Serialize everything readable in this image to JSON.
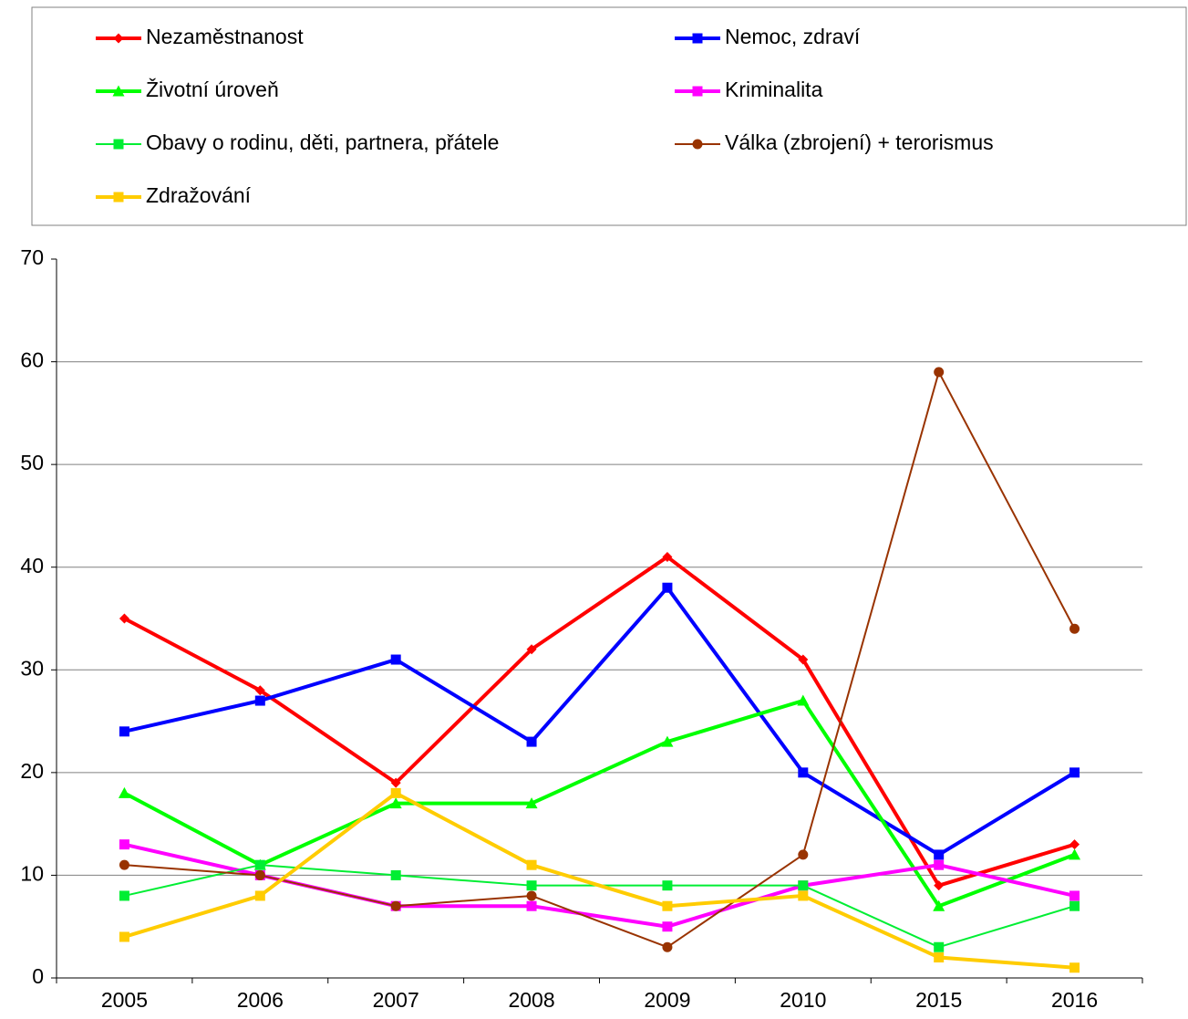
{
  "chart_data": {
    "type": "line",
    "categories": [
      "2005",
      "2006",
      "2007",
      "2008",
      "2009",
      "2010",
      "2015",
      "2016"
    ],
    "ylim": [
      0,
      70
    ],
    "yticks": [
      0,
      10,
      20,
      30,
      40,
      50,
      60,
      70
    ],
    "grid": true,
    "legend": "top",
    "series": [
      {
        "name": "Nezaměstnanost",
        "color": "#ff0000",
        "marker": "diamond",
        "style": "thick",
        "values": [
          35,
          28,
          19,
          32,
          41,
          31,
          9,
          13
        ]
      },
      {
        "name": "Nemoc, zdraví",
        "color": "#0000ff",
        "marker": "square",
        "style": "thick",
        "values": [
          24,
          27,
          31,
          23,
          38,
          20,
          12,
          20
        ]
      },
      {
        "name": "Životní úroveň",
        "color": "#00ff00",
        "marker": "triangle",
        "style": "thick",
        "values": [
          18,
          11,
          17,
          17,
          23,
          27,
          7,
          12
        ]
      },
      {
        "name": "Kriminalita",
        "color": "#ff00ff",
        "marker": "square",
        "style": "thick",
        "values": [
          13,
          10,
          7,
          7,
          5,
          9,
          11,
          8
        ]
      },
      {
        "name": "Obavy o rodinu, děti, partnera, přátele",
        "color": "#00ee33",
        "marker": "square",
        "style": "thin",
        "values": [
          8,
          11,
          10,
          9,
          9,
          9,
          3,
          7
        ]
      },
      {
        "name": "Válka (zbrojení) + terorismus",
        "color": "#993300",
        "marker": "circle",
        "style": "thin",
        "values": [
          11,
          10,
          7,
          8,
          3,
          12,
          59,
          34
        ]
      },
      {
        "name": "Zdražování",
        "color": "#ffcc00",
        "marker": "square",
        "style": "thick",
        "values": [
          4,
          8,
          18,
          11,
          7,
          8,
          2,
          1
        ]
      }
    ]
  }
}
